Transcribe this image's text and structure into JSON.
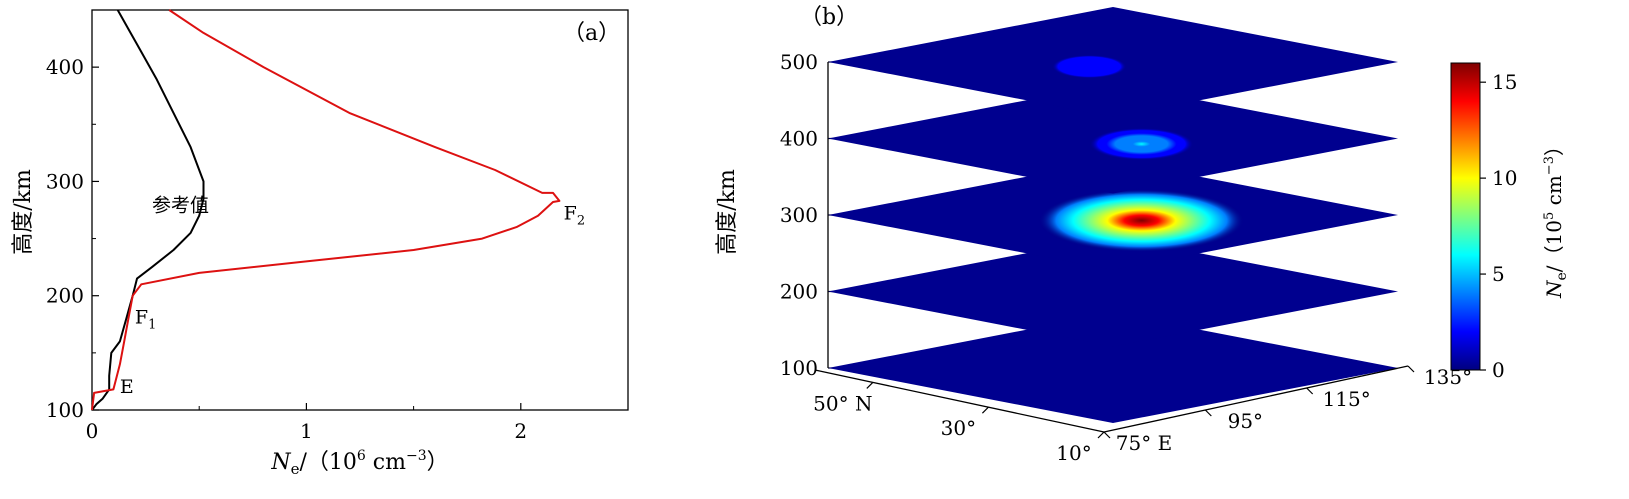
{
  "chart_data": [
    {
      "type": "line",
      "panel_label": "（a）",
      "xlabel_symbol": "N",
      "xlabel_sub": "e",
      "xlabel_unit": "/（10",
      "xlabel_exp": "6",
      "xlabel_unit2": " cm",
      "xlabel_exp2": "−3",
      "xlabel_close": "）",
      "ylabel": "高度/km",
      "xlim": [
        0,
        2.5
      ],
      "ylim": [
        100,
        450
      ],
      "xticks": [
        "0",
        "1",
        "2"
      ],
      "yticks": [
        "100",
        "200",
        "300",
        "400"
      ],
      "annotations": [
        {
          "text": "参考值",
          "x": 0.28,
          "y": 280
        },
        {
          "text": "F",
          "sub": "2",
          "x": 2.2,
          "y": 273
        },
        {
          "text": "F",
          "sub": "1",
          "x": 0.2,
          "y": 182
        },
        {
          "text": "E",
          "x": 0.13,
          "y": 121
        }
      ],
      "series": [
        {
          "color": "#000000",
          "x": [
            0.0,
            0.02,
            0.05,
            0.08,
            0.08,
            0.09,
            0.13,
            0.16,
            0.19,
            0.21,
            0.28,
            0.38,
            0.46,
            0.5,
            0.52,
            0.52,
            0.5,
            0.46,
            0.38,
            0.3,
            0.21,
            0.12
          ],
          "y": [
            100,
            105,
            110,
            118,
            130,
            150,
            160,
            180,
            200,
            215,
            225,
            240,
            255,
            270,
            285,
            300,
            310,
            330,
            360,
            390,
            420,
            450
          ]
        },
        {
          "color": "#dd1111",
          "x": [
            0.0,
            0.01,
            0.1,
            0.13,
            0.15,
            0.17,
            0.19,
            0.23,
            0.5,
            1.0,
            1.5,
            1.82,
            1.98,
            2.08,
            2.15,
            2.18,
            2.15,
            2.1,
            1.88,
            1.6,
            1.2,
            0.8,
            0.52,
            0.36
          ],
          "y": [
            100,
            115,
            118,
            140,
            160,
            180,
            200,
            210,
            220,
            230,
            240,
            250,
            260,
            270,
            282,
            283,
            290,
            290,
            310,
            330,
            360,
            400,
            430,
            450
          ]
        }
      ]
    },
    {
      "type": "heatmap",
      "panel_label": "（b）",
      "ylabel": "高度/km",
      "zticks": [
        "100",
        "200",
        "300",
        "400",
        "500"
      ],
      "lat_ticks": [
        "50° N",
        "30°",
        "10°"
      ],
      "lon_ticks": [
        "75° E",
        "95°",
        "115°",
        "135°"
      ],
      "layer_altitudes": [
        100,
        200,
        300,
        400,
        500
      ],
      "background_color": "#00008f",
      "colorbar": {
        "range": [
          0,
          16
        ],
        "ticks": [
          "0",
          "5",
          "10",
          "15"
        ],
        "label_symbol": "N",
        "label_sub": "e",
        "label_unit": "/（10",
        "label_exp": "5",
        "label_unit2": " cm",
        "label_exp2": "−3",
        "label_close": "）",
        "colors": [
          "#00007f",
          "#0000ff",
          "#007fff",
          "#00ffff",
          "#7fff7f",
          "#ffff00",
          "#ff7f00",
          "#ff0000",
          "#7f0000"
        ]
      },
      "peaks": [
        {
          "altitude": 500,
          "lon": 100,
          "lat": 35,
          "max": 2.5
        },
        {
          "altitude": 400,
          "lon": 105,
          "lat": 30,
          "max": 5.5
        },
        {
          "altitude": 300,
          "lon": 105,
          "lat": 30,
          "max": 15.5
        }
      ]
    }
  ]
}
